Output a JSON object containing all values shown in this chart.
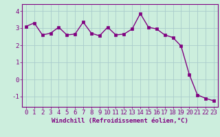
{
  "x": [
    0,
    1,
    2,
    3,
    4,
    5,
    6,
    7,
    8,
    9,
    10,
    11,
    12,
    13,
    14,
    15,
    16,
    17,
    18,
    19,
    20,
    21,
    22,
    23
  ],
  "y": [
    3.1,
    3.3,
    2.6,
    2.7,
    3.05,
    2.6,
    2.65,
    3.35,
    2.7,
    2.55,
    3.05,
    2.6,
    2.65,
    2.95,
    3.85,
    3.05,
    2.95,
    2.6,
    2.45,
    1.95,
    0.3,
    -0.9,
    -1.1,
    -1.25
  ],
  "line_color": "#800080",
  "marker_color": "#800080",
  "bg_color": "#cceedd",
  "grid_color": "#aacccc",
  "xlabel": "Windchill (Refroidissement éolien,°C)",
  "xlabel_color": "#800080",
  "tick_color": "#800080",
  "ylim": [
    -1.6,
    4.4
  ],
  "yticks": [
    -1,
    0,
    1,
    2,
    3,
    4
  ],
  "xlim": [
    -0.5,
    23.5
  ],
  "xticks": [
    0,
    1,
    2,
    3,
    4,
    5,
    6,
    7,
    8,
    9,
    10,
    11,
    12,
    13,
    14,
    15,
    16,
    17,
    18,
    19,
    20,
    21,
    22,
    23
  ],
  "tick_fontsize": 6.5,
  "xlabel_fontsize": 6.5,
  "ylabel_fontsize": 6.5,
  "linewidth": 1.0,
  "markersize": 2.5
}
